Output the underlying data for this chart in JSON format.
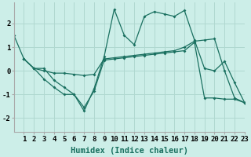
{
  "background_color": "#cceee8",
  "grid_color": "#b0d8d0",
  "line_color": "#1a7060",
  "xlabel": "Humidex (Indice chaleur)",
  "xlabel_fontsize": 7.5,
  "tick_fontsize": 6.5,
  "ylim": [
    -2.6,
    2.9
  ],
  "xlim": [
    0.0,
    23.0
  ],
  "xticks": [
    1,
    2,
    3,
    4,
    5,
    6,
    7,
    8,
    9,
    10,
    11,
    12,
    13,
    14,
    15,
    16,
    17,
    18,
    19,
    20,
    21,
    22,
    23
  ],
  "yticks": [
    -2,
    -1,
    0,
    1,
    2
  ],
  "series1_x": [
    0,
    1,
    2,
    3,
    4,
    5,
    6,
    7,
    8,
    9,
    10,
    11,
    12,
    13,
    14,
    15,
    16,
    17,
    18,
    19,
    20,
    21,
    22,
    23
  ],
  "series1_y": [
    1.5,
    0.5,
    0.1,
    0.1,
    -0.4,
    -0.7,
    -1.0,
    -1.7,
    -0.75,
    0.6,
    2.6,
    1.5,
    1.1,
    2.3,
    2.5,
    2.4,
    2.3,
    2.55,
    1.3,
    0.1,
    0.0,
    0.4,
    -0.5,
    -1.35
  ],
  "series2_x": [
    1,
    2,
    3,
    4,
    5,
    6,
    7,
    8,
    9,
    10,
    11,
    12,
    13,
    14,
    15,
    16,
    17,
    18,
    19,
    20,
    21,
    22,
    23
  ],
  "series2_y": [
    0.5,
    0.1,
    -0.0,
    -0.1,
    -0.1,
    -0.15,
    -0.2,
    -0.15,
    0.5,
    0.55,
    0.6,
    0.65,
    0.7,
    0.75,
    0.8,
    0.85,
    1.0,
    1.25,
    1.3,
    1.35,
    0.0,
    -1.15,
    -1.35
  ],
  "series3_x": [
    1,
    2,
    3,
    4,
    5,
    6,
    7,
    8,
    9,
    10,
    11,
    12,
    13,
    14,
    15,
    16,
    17,
    18,
    19,
    20,
    21,
    22,
    23
  ],
  "series3_y": [
    0.5,
    0.1,
    -0.35,
    -0.7,
    -1.0,
    -1.0,
    -1.55,
    -0.85,
    0.45,
    0.5,
    0.55,
    0.6,
    0.65,
    0.7,
    0.75,
    0.8,
    0.85,
    1.2,
    -1.15,
    -1.15,
    -1.2,
    -1.2,
    -1.35
  ]
}
